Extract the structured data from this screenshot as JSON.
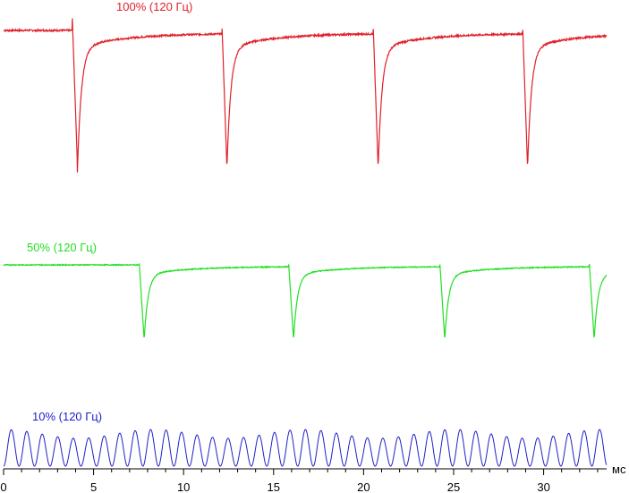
{
  "chart_data": {
    "type": "line",
    "xlabel": "мс",
    "xlim": [
      0,
      33.5
    ],
    "xticks": [
      0,
      5,
      10,
      15,
      20,
      25,
      30
    ],
    "grid": false,
    "series": [
      {
        "name": "100% (120 Гц)",
        "color": "#e0202a",
        "period_ms": 8.33,
        "dip_times_ms": [
          4.1,
          12.4,
          20.8,
          29.1
        ],
        "baseline_level": 1.0,
        "dip_level": 0.0
      },
      {
        "name": "50% (120 Гц)",
        "color": "#22e022",
        "period_ms": 8.33,
        "dip_times_ms": [
          7.8,
          16.1,
          24.5,
          32.8
        ],
        "baseline_level": 1.0,
        "dip_level": 0.0
      },
      {
        "name": "10% (120 Гц)",
        "color": "#2020c8",
        "oscillation_period_ms": 0.86,
        "envelope_period_ms": 8.33,
        "baseline_level": 0.0,
        "peak_level": 1.0
      }
    ]
  }
}
